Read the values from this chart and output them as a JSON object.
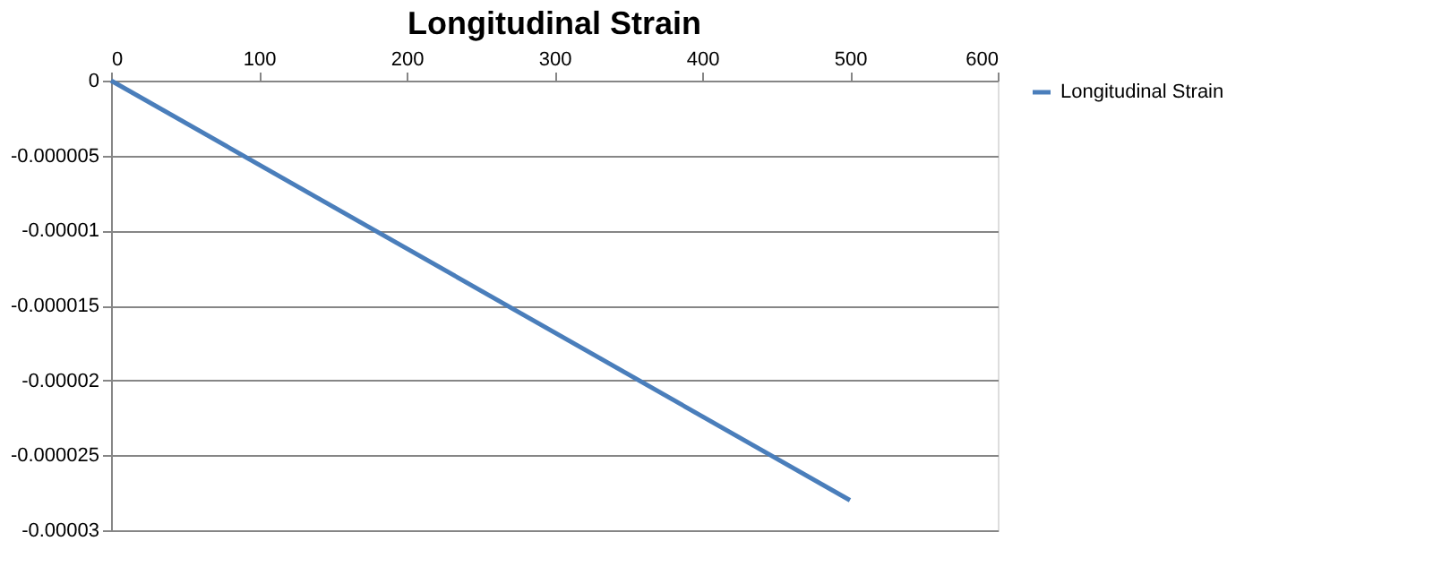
{
  "chart_data": {
    "type": "line",
    "title": "Longitudinal Strain",
    "x": [
      0,
      500
    ],
    "series": [
      {
        "name": "Longitudinal Strain",
        "color": "#4a7ebb",
        "values": [
          0,
          -2.8e-05
        ]
      }
    ],
    "xlim": [
      0,
      600
    ],
    "xticks": [
      0,
      100,
      200,
      300,
      400,
      500,
      600
    ],
    "ylim": [
      -3e-05,
      0
    ],
    "yticks": [
      {
        "value": 0,
        "label": "0"
      },
      {
        "value": -5e-06,
        "label": "-0.000005"
      },
      {
        "value": -1e-05,
        "label": "-0.00001"
      },
      {
        "value": -1.5e-05,
        "label": "-0.000015"
      },
      {
        "value": -2e-05,
        "label": "-0.00002"
      },
      {
        "value": -2.5e-05,
        "label": "-0.000025"
      },
      {
        "value": -3e-05,
        "label": "-0.00003"
      }
    ],
    "grid": "y",
    "legend": "right",
    "marker": "none",
    "line_style": "solid"
  }
}
